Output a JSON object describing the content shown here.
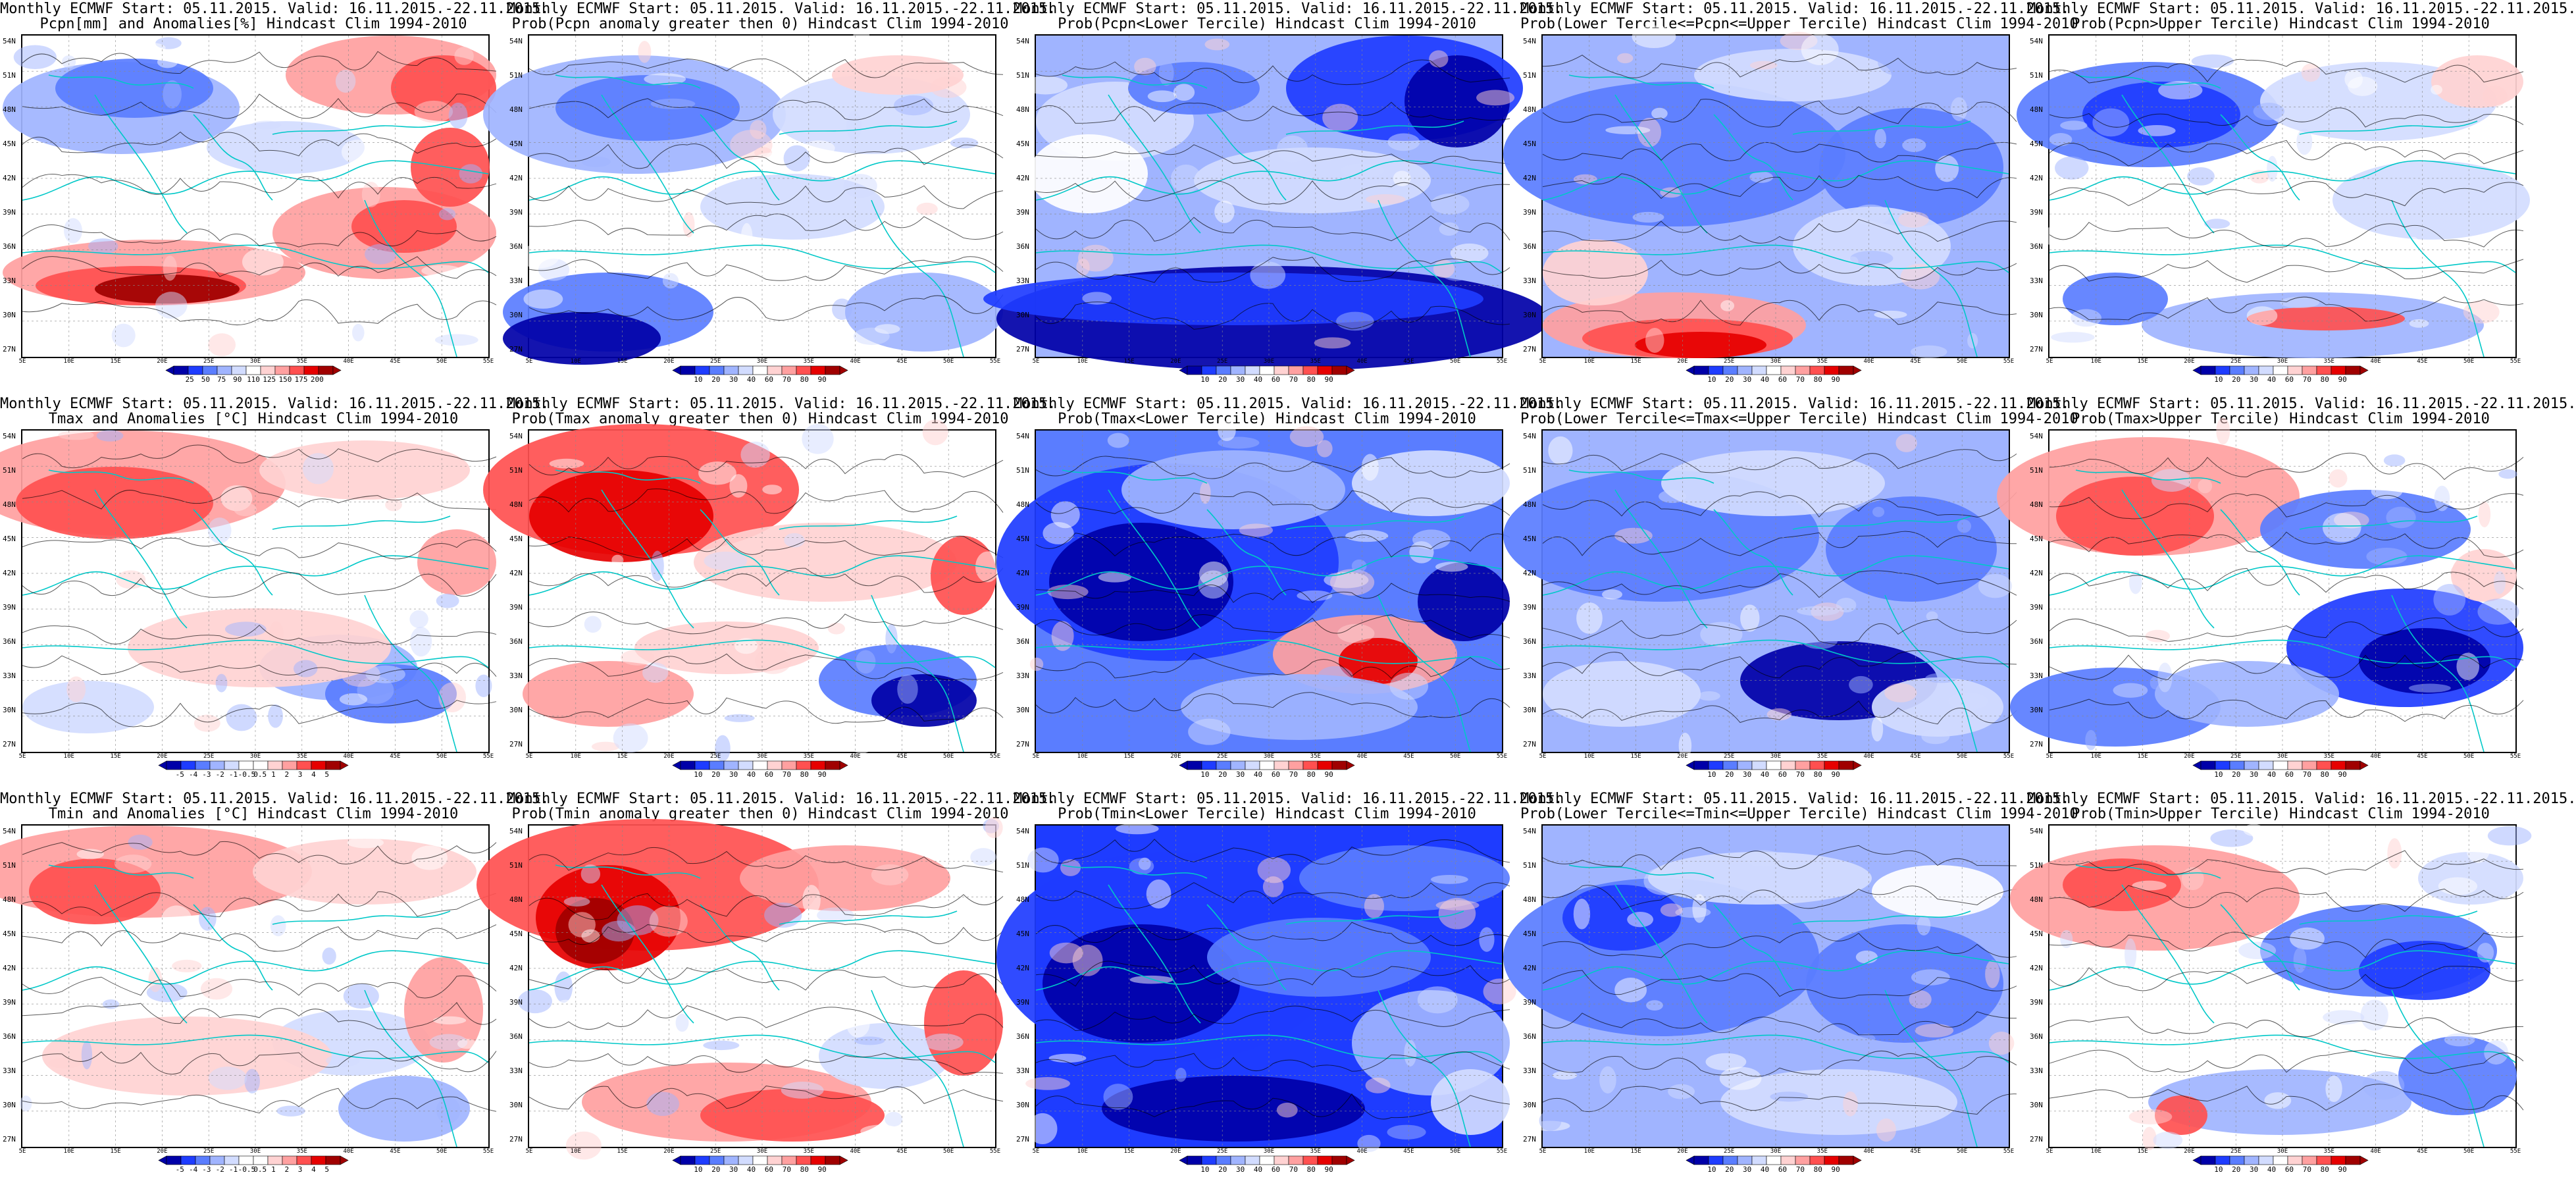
{
  "source": "Monthly ECMWF",
  "panels": [
    {
      "title_line1": "Monthly ECMWF Start: 05.11.2015. Valid: 16.11.2015.-22.11.2015.",
      "title_line2": "Pcpn[mm] and Anomalies[%] Hindcast Clim 1994-2010",
      "scale": "pcpn_anom",
      "pattern": "precip_anom"
    },
    {
      "title_line1": "Monthly ECMWF Start: 05.11.2015. Valid: 16.11.2015.-22.11.2015.",
      "title_line2": "Prob(Pcpn anomaly greater then 0) Hindcast Clim 1994-2010",
      "scale": "prob",
      "pattern": "precip_pos"
    },
    {
      "title_line1": "Monthly ECMWF Start: 05.11.2015. Valid: 16.11.2015.-22.11.2015.",
      "title_line2": "Prob(Pcpn<Lower Tercile) Hindcast Clim 1994-2010",
      "scale": "prob",
      "pattern": "precip_lower"
    },
    {
      "title_line1": "Monthly ECMWF Start: 05.11.2015. Valid: 16.11.2015.-22.11.2015.",
      "title_line2": "Prob(Lower Tercile<=Pcpn<=Upper Tercile) Hindcast Clim 1994-2010",
      "scale": "prob",
      "pattern": "precip_middle"
    },
    {
      "title_line1": "Monthly ECMWF Start: 05.11.2015. Valid: 16.11.2015.-22.11.2015.",
      "title_line2": "Prob(Pcpn>Upper Tercile) Hindcast Clim 1994-2010",
      "scale": "prob",
      "pattern": "precip_upper"
    },
    {
      "title_line1": "Monthly ECMWF Start: 05.11.2015. Valid: 16.11.2015.-22.11.2015.",
      "title_line2": "Tmax and Anomalies [°C] Hindcast Clim 1994-2010",
      "scale": "temp_anom",
      "pattern": "tmax_anom"
    },
    {
      "title_line1": "Monthly ECMWF Start: 05.11.2015. Valid: 16.11.2015.-22.11.2015.",
      "title_line2": "Prob(Tmax anomaly greater then 0) Hindcast Clim 1994-2010",
      "scale": "prob",
      "pattern": "tmax_pos"
    },
    {
      "title_line1": "Monthly ECMWF Start: 05.11.2015. Valid: 16.11.2015.-22.11.2015.",
      "title_line2": "Prob(Tmax<Lower Tercile) Hindcast Clim 1994-2010",
      "scale": "prob",
      "pattern": "tmax_lower"
    },
    {
      "title_line1": "Monthly ECMWF Start: 05.11.2015. Valid: 16.11.2015.-22.11.2015.",
      "title_line2": "Prob(Lower Tercile<=Tmax<=Upper Tercile) Hindcast Clim 1994-2010",
      "scale": "prob",
      "pattern": "tmax_middle"
    },
    {
      "title_line1": "Monthly ECMWF Start: 05.11.2015. Valid: 16.11.2015.-22.11.2015.",
      "title_line2": "Prob(Tmax>Upper Tercile) Hindcast Clim 1994-2010",
      "scale": "prob",
      "pattern": "tmax_upper"
    },
    {
      "title_line1": "Monthly ECMWF Start: 05.11.2015. Valid: 16.11.2015.-22.11.2015.",
      "title_line2": "Tmin and Anomalies [°C] Hindcast Clim 1994-2010",
      "scale": "temp_anom",
      "pattern": "tmin_anom"
    },
    {
      "title_line1": "Monthly ECMWF Start: 05.11.2015. Valid: 16.11.2015.-22.11.2015.",
      "title_line2": "Prob(Tmin anomaly greater then 0) Hindcast Clim 1994-2010",
      "scale": "prob",
      "pattern": "tmin_pos"
    },
    {
      "title_line1": "Monthly ECMWF Start: 05.11.2015. Valid: 16.11.2015.-22.11.2015.",
      "title_line2": "Prob(Tmin<Lower Tercile) Hindcast Clim 1994-2010",
      "scale": "prob",
      "pattern": "tmin_lower"
    },
    {
      "title_line1": "Monthly ECMWF Start: 05.11.2015. Valid: 16.11.2015.-22.11.2015.",
      "title_line2": "Prob(Lower Tercile<=Tmin<=Upper Tercile) Hindcast Clim 1994-2010",
      "scale": "prob",
      "pattern": "tmin_middle"
    },
    {
      "title_line1": "Monthly ECMWF Start: 05.11.2015. Valid: 16.11.2015.-22.11.2015.",
      "title_line2": "Prob(Tmin>Upper Tercile) Hindcast Clim 1994-2010",
      "scale": "prob",
      "pattern": "tmin_upper"
    }
  ],
  "scales": {
    "prob": {
      "labels": [
        "10",
        "20",
        "30",
        "40",
        "60",
        "70",
        "80",
        "90"
      ],
      "colors": [
        "#0000a8",
        "#1e3cff",
        "#5a7dff",
        "#a0b4ff",
        "#d2dcff",
        "#ffffff",
        "#ffd2d2",
        "#ffa0a0",
        "#ff5050",
        "#e60000",
        "#a00000"
      ]
    },
    "pcpn_anom": {
      "labels": [
        "25",
        "50",
        "75",
        "90",
        "110",
        "125",
        "150",
        "175",
        "200"
      ],
      "colors": [
        "#0000a8",
        "#1e3cff",
        "#5a7dff",
        "#a0b4ff",
        "#d2dcff",
        "#ffffff",
        "#ffd2d2",
        "#ffa0a0",
        "#ff5050",
        "#e60000",
        "#a00000"
      ]
    },
    "temp_anom": {
      "labels": [
        "-5",
        "-4",
        "-3",
        "-2",
        "-1",
        "-0.5",
        "0.5",
        "1",
        "2",
        "3",
        "4",
        "5"
      ],
      "colors": [
        "#0000a8",
        "#1e3cff",
        "#5a7dff",
        "#a0b4ff",
        "#d2dcff",
        "#ffffff",
        "#ffffff",
        "#ffd2d2",
        "#ffa0a0",
        "#ff5050",
        "#e60000",
        "#a00000"
      ]
    }
  },
  "axes": {
    "lat_labels": [
      "54N",
      "51N",
      "48N",
      "45N",
      "42N",
      "39N",
      "36N",
      "33N",
      "30N",
      "27N"
    ],
    "lon_labels": [
      "5E",
      "10E",
      "15E",
      "20E",
      "25E",
      "30E",
      "35E",
      "40E",
      "45E",
      "50E",
      "55E"
    ]
  },
  "palette": {
    "blue_dark": "#0000a8",
    "blue": "#1e3cff",
    "blue_mid": "#5a7dff",
    "blue_light": "#a0b4ff",
    "blue_pale": "#d2dcff",
    "white": "#ffffff",
    "red_pale": "#ffd2d2",
    "red_light": "#ffa0a0",
    "red_mid": "#ff5050",
    "red": "#e60000",
    "red_dark": "#a00000",
    "coast": "#00c8c8",
    "contour": "#000000"
  }
}
